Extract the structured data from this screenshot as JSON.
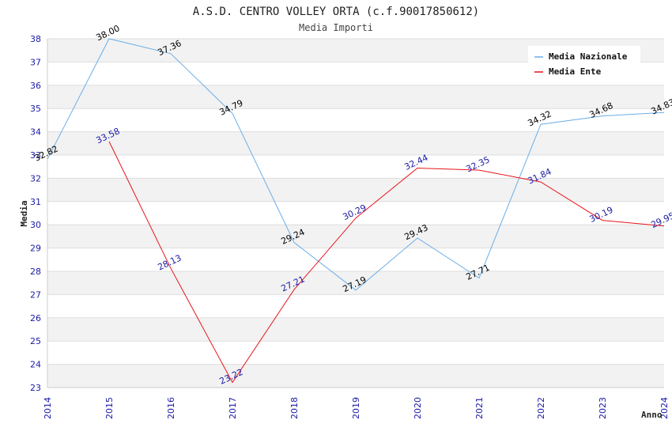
{
  "chart_data": {
    "type": "line",
    "title": "A.S.D. CENTRO VOLLEY ORTA (c.f.90017850612)",
    "subtitle": "Media Importi",
    "xlabel": "Anno",
    "ylabel": "Media",
    "x": [
      "2014",
      "2015",
      "2016",
      "2017",
      "2018",
      "2019",
      "2020",
      "2021",
      "2022",
      "2023",
      "2024"
    ],
    "ylim": [
      23,
      38
    ],
    "yticks": [
      23,
      24,
      25,
      26,
      27,
      28,
      29,
      30,
      31,
      32,
      33,
      34,
      35,
      36,
      37,
      38
    ],
    "grid": true,
    "legend_position": "top-right",
    "series": [
      {
        "name": "Media Nazionale",
        "color": "#6aaee8",
        "label_color": "#000000",
        "values": [
          32.82,
          38.0,
          37.36,
          34.79,
          29.24,
          27.19,
          29.43,
          27.71,
          34.32,
          34.68,
          34.83
        ]
      },
      {
        "name": "Media Ente",
        "color": "#e8141b",
        "label_color": "#1a1aa6",
        "values": [
          null,
          33.58,
          28.13,
          23.22,
          27.21,
          30.29,
          32.44,
          32.35,
          31.84,
          30.19,
          29.95
        ]
      }
    ]
  }
}
